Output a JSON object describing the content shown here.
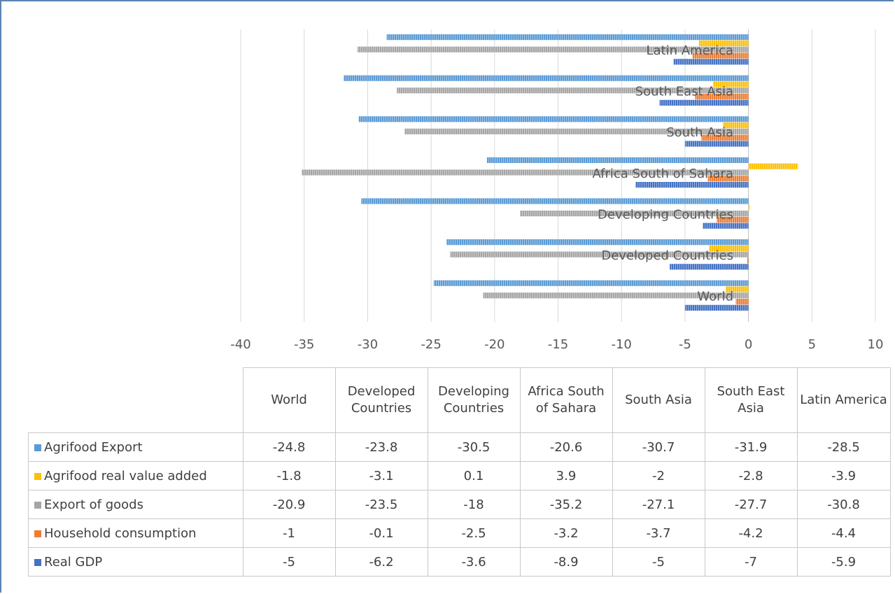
{
  "chart_data": {
    "type": "bar",
    "orientation": "horizontal",
    "categories": [
      "World",
      "Developed Countries",
      "Developing Countries",
      "Africa South of Sahara",
      "South Asia",
      "South East Asia",
      "Latin America"
    ],
    "table_headers": [
      "World",
      "Developed Countries",
      "Developing Countries",
      "Africa South of Sahara",
      "South Asia",
      "South East Asia",
      "Latin America"
    ],
    "series": [
      {
        "name": "Agrifood Export",
        "color": "#5b9bd5",
        "values": [
          -24.8,
          -23.8,
          -30.5,
          -20.6,
          -30.7,
          -31.9,
          -28.5
        ],
        "labels": [
          "-24.8",
          "-23.8",
          "-30.5",
          "-20.6",
          "-30.7",
          "-31.9",
          "-28.5"
        ]
      },
      {
        "name": "Agrifood real value added",
        "color": "#ffc000",
        "values": [
          -1.8,
          -3.1,
          0.1,
          3.9,
          -2,
          -2.8,
          -3.9
        ],
        "labels": [
          "-1.8",
          "-3.1",
          "0.1",
          "3.9",
          "-2",
          "-2.8",
          "-3.9"
        ]
      },
      {
        "name": "Export of goods",
        "color": "#a5a5a5",
        "values": [
          -20.9,
          -23.5,
          -18,
          -35.2,
          -27.1,
          -27.7,
          -30.8
        ],
        "labels": [
          "-20.9",
          "-23.5",
          "-18",
          "-35.2",
          "-27.1",
          "-27.7",
          "-30.8"
        ]
      },
      {
        "name": "Household consumption",
        "color": "#ed7d31",
        "values": [
          -1,
          -0.1,
          -2.5,
          -3.2,
          -3.7,
          -4.2,
          -4.4
        ],
        "labels": [
          "-1",
          "-0.1",
          "-2.5",
          "-3.2",
          "-3.7",
          "-4.2",
          "-4.4"
        ]
      },
      {
        "name": "Real GDP",
        "color": "#4472c4",
        "values": [
          -5,
          -6.2,
          -3.6,
          -8.9,
          -5,
          -7,
          -5.9
        ],
        "labels": [
          "-5",
          "-6.2",
          "-3.6",
          "-8.9",
          "-5",
          "-7",
          "-5.9"
        ]
      }
    ],
    "xlim": [
      -40,
      10
    ],
    "x_ticks": [
      "-40",
      "-35",
      "-30",
      "-25",
      "-20",
      "-15",
      "-10",
      "-5",
      "0",
      "5",
      "10"
    ],
    "grid": true,
    "legend": "data-table"
  }
}
